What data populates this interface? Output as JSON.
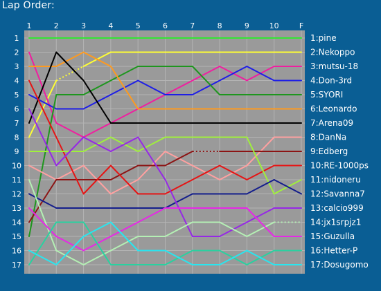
{
  "title": "Lap Order:",
  "chart_data": {
    "type": "line",
    "title": "Lap Order:",
    "x": [
      "1",
      "2",
      "3",
      "4",
      "5",
      "6",
      "7",
      "8",
      "9",
      "10",
      "F"
    ],
    "positions": [
      1,
      2,
      3,
      4,
      5,
      6,
      7,
      8,
      9,
      10,
      11,
      12,
      13,
      14,
      15,
      16,
      17
    ],
    "grid": true,
    "legend": "right",
    "series": [
      {
        "name": "1:pine",
        "color": "#33e633",
        "dotted": [],
        "values": [
          1,
          1,
          1,
          1,
          1,
          1,
          1,
          1,
          1,
          1,
          1
        ]
      },
      {
        "name": "2:Nekoppo",
        "color": "#ffff33",
        "dotted": [
          [
            2,
            3
          ]
        ],
        "values": [
          8,
          4,
          3,
          2,
          2,
          2,
          2,
          2,
          2,
          2,
          2
        ]
      },
      {
        "name": "3:mutsu-18",
        "color": "#f01ea0",
        "dotted": [],
        "values": [
          2,
          7,
          8,
          7,
          6,
          5,
          4,
          3,
          4,
          3,
          3
        ]
      },
      {
        "name": "4:Don-3rd",
        "color": "#1e1ee6",
        "dotted": [],
        "values": [
          5,
          6,
          6,
          5,
          4,
          5,
          5,
          4,
          3,
          4,
          4
        ]
      },
      {
        "name": "5:SYORI",
        "color": "#1e961e",
        "dotted": [],
        "values": [
          15,
          5,
          5,
          4,
          3,
          3,
          3,
          5,
          5,
          5,
          5
        ]
      },
      {
        "name": "6:Leonardo",
        "color": "#ff9a1e",
        "dotted": [],
        "values": [
          3,
          3,
          2,
          3,
          6,
          6,
          6,
          6,
          6,
          6,
          6
        ]
      },
      {
        "name": "7:Arena09",
        "color": "#000000",
        "dotted": [],
        "values": [
          7,
          2,
          4,
          7,
          7,
          7,
          7,
          7,
          7,
          7,
          7
        ]
      },
      {
        "name": "8:DanNa",
        "color": "#ffa0a0",
        "dotted": [],
        "values": [
          10,
          11,
          10,
          12,
          11,
          9,
          10,
          11,
          10,
          8,
          8
        ]
      },
      {
        "name": "9:Edberg",
        "color": "#8c1414",
        "dotted": [
          [
            7,
            8
          ]
        ],
        "values": [
          14,
          11,
          11,
          11,
          10,
          10,
          9,
          9,
          9,
          9,
          9
        ]
      },
      {
        "name": "10:RE-1000ps",
        "color": "#e61414",
        "dotted": [],
        "values": [
          4,
          8,
          12,
          10,
          12,
          12,
          11,
          10,
          11,
          10,
          10
        ]
      },
      {
        "name": "11:nidoneru",
        "color": "#a0f03c",
        "dotted": [],
        "values": [
          9,
          9,
          9,
          8,
          9,
          8,
          8,
          8,
          8,
          12,
          11
        ]
      },
      {
        "name": "12:Savanna7",
        "color": "#141e8c",
        "dotted": [],
        "values": [
          12,
          13,
          13,
          13,
          13,
          13,
          12,
          12,
          12,
          11,
          12
        ]
      },
      {
        "name": "13:calcio999",
        "color": "#9628e6",
        "dotted": [],
        "values": [
          6,
          10,
          8,
          9,
          8,
          11,
          15,
          15,
          14,
          13,
          13
        ]
      },
      {
        "name": "14:jx1srpjz1",
        "color": "#b4f0b4",
        "dotted": [
          [
            10,
            11
          ]
        ],
        "values": [
          11,
          16,
          17,
          16,
          15,
          15,
          14,
          14,
          15,
          14,
          14
        ]
      },
      {
        "name": "15:Guzulla",
        "color": "#e628e6",
        "dotted": [],
        "values": [
          13,
          15,
          16,
          15,
          14,
          13,
          13,
          13,
          13,
          15,
          15
        ]
      },
      {
        "name": "16:Hetter-P",
        "color": "#28d2a0",
        "dotted": [],
        "values": [
          17,
          14,
          14,
          17,
          17,
          17,
          16,
          16,
          17,
          16,
          16
        ]
      },
      {
        "name": "17:Dosugomo",
        "color": "#28e6f0",
        "dotted": [],
        "values": [
          16,
          17,
          15,
          14,
          16,
          16,
          17,
          17,
          16,
          17,
          17
        ]
      }
    ]
  }
}
